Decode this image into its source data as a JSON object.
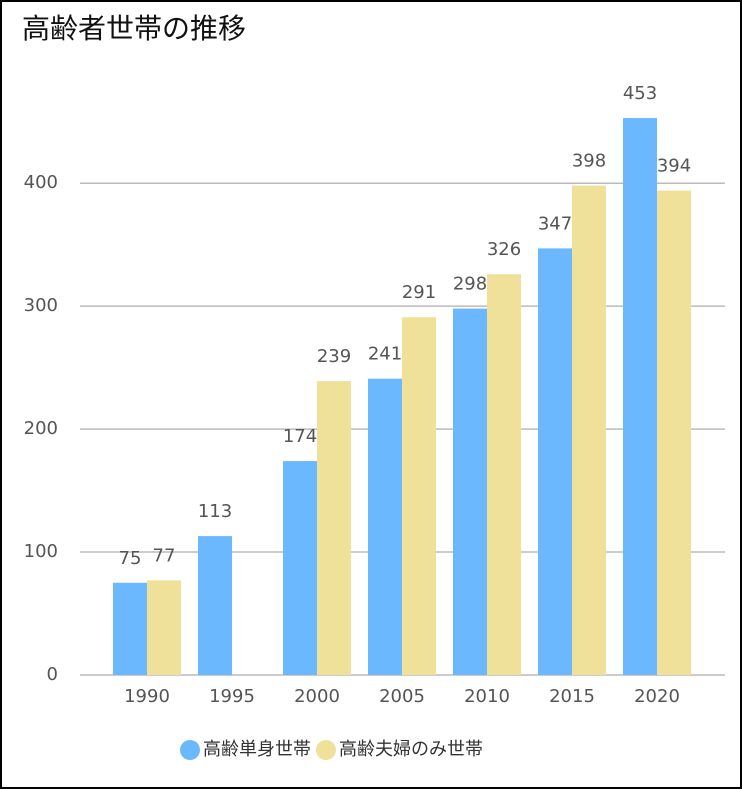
{
  "chart_data": {
    "type": "bar",
    "title": "高齢者世帯の推移",
    "categories": [
      "1990",
      "1995",
      "2000",
      "2005",
      "2010",
      "2015",
      "2020"
    ],
    "series": [
      {
        "name": "高齢単身世帯",
        "color": "#6cb8ff",
        "values": [
          75,
          113,
          174,
          241,
          298,
          347,
          453
        ]
      },
      {
        "name": "高齢夫婦のみ世帯",
        "color": "#efe09a",
        "values": [
          77,
          null,
          239,
          291,
          326,
          398,
          394
        ]
      }
    ],
    "ylim": [
      0,
      475
    ],
    "yticks": [
      0,
      100,
      200,
      300,
      400
    ],
    "grid": true,
    "legend": "bottom"
  }
}
